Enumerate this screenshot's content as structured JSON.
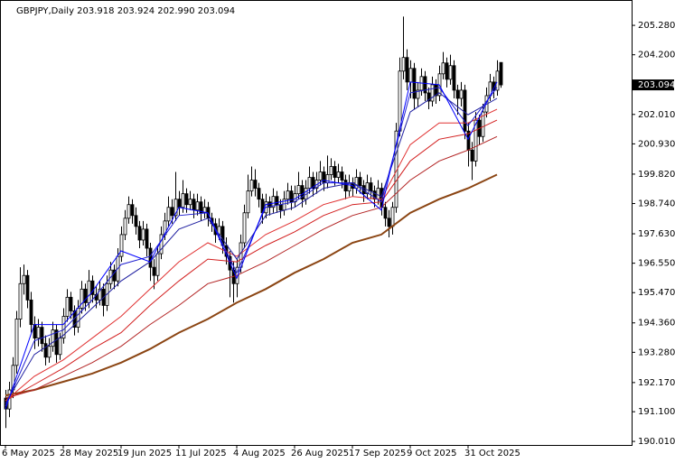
{
  "chart_data": {
    "type": "candlestick",
    "title": "GBPJPY,Daily  203.918 203.924 202.990 203.094",
    "xlim": [
      -1.5,
      173.25
    ],
    "ylim": [
      189.88,
      206.21
    ],
    "grid": false,
    "up_color": "#ffffff",
    "down_color": "#000000",
    "xticks": [
      {
        "value": 0,
        "label": "6 May 2025"
      },
      {
        "value": 16,
        "label": "28 May 2025"
      },
      {
        "value": 32,
        "label": "19 Jun 2025"
      },
      {
        "value": 48,
        "label": "11 Jul 2025"
      },
      {
        "value": 64,
        "label": "4 Aug 2025"
      },
      {
        "value": 80,
        "label": "26 Aug 2025"
      },
      {
        "value": 96,
        "label": "17 Sep 2025"
      },
      {
        "value": 112,
        "label": "9 Oct 2025"
      },
      {
        "value": 128,
        "label": "31 Oct 2025"
      }
    ],
    "yticks": [
      {
        "value": 190.01,
        "label": "190.010"
      },
      {
        "value": 191.1,
        "label": "191.100"
      },
      {
        "value": 192.17,
        "label": "192.170"
      },
      {
        "value": 193.28,
        "label": "193.280"
      },
      {
        "value": 194.36,
        "label": "194.360"
      },
      {
        "value": 195.47,
        "label": "195.470"
      },
      {
        "value": 196.55,
        "label": "196.550"
      },
      {
        "value": 197.63,
        "label": "197.630"
      },
      {
        "value": 198.74,
        "label": "198.740"
      },
      {
        "value": 199.82,
        "label": "199.820"
      },
      {
        "value": 200.93,
        "label": "200.930"
      },
      {
        "value": 202.01,
        "label": "202.010"
      },
      {
        "value": 204.2,
        "label": "204.200"
      },
      {
        "value": 205.28,
        "label": "205.280"
      }
    ],
    "last_price": {
      "value": 203.094,
      "label": "203.094"
    },
    "candles": [
      [
        191.6,
        191.9,
        190.5,
        191.2
      ],
      [
        191.2,
        192.2,
        190.9,
        191.9
      ],
      [
        191.9,
        193.1,
        191.6,
        192.8
      ],
      [
        192.8,
        194.8,
        192.5,
        194.5
      ],
      [
        194.5,
        196.4,
        194.2,
        195.8
      ],
      [
        195.8,
        196.5,
        195.4,
        196.1
      ],
      [
        196.1,
        196.3,
        194.9,
        195.2
      ],
      [
        195.2,
        195.5,
        194.0,
        194.3
      ],
      [
        194.3,
        194.6,
        193.4,
        193.8
      ],
      [
        193.8,
        194.5,
        193.5,
        194.2
      ],
      [
        194.2,
        194.4,
        193.3,
        193.6
      ],
      [
        193.6,
        193.9,
        192.8,
        193.1
      ],
      [
        193.1,
        193.8,
        192.9,
        193.5
      ],
      [
        193.5,
        194.4,
        193.3,
        194.1
      ],
      [
        194.1,
        194.3,
        192.9,
        193.2
      ],
      [
        193.2,
        194.0,
        193.0,
        193.8
      ],
      [
        193.8,
        194.9,
        193.6,
        194.6
      ],
      [
        194.6,
        195.6,
        194.4,
        195.3
      ],
      [
        195.3,
        195.5,
        194.5,
        194.8
      ],
      [
        194.8,
        195.0,
        193.9,
        194.2
      ],
      [
        194.2,
        195.2,
        194.0,
        194.9
      ],
      [
        194.9,
        195.9,
        194.7,
        195.6
      ],
      [
        195.6,
        195.8,
        194.8,
        195.1
      ],
      [
        195.1,
        196.3,
        194.9,
        195.9
      ],
      [
        195.9,
        196.1,
        195.1,
        195.4
      ],
      [
        195.4,
        195.7,
        194.9,
        195.2
      ],
      [
        195.2,
        195.9,
        195.0,
        195.6
      ],
      [
        195.6,
        195.8,
        194.6,
        195.0
      ],
      [
        195.0,
        196.1,
        194.8,
        195.8
      ],
      [
        195.8,
        196.6,
        195.6,
        196.3
      ],
      [
        196.3,
        196.5,
        195.6,
        195.9
      ],
      [
        195.9,
        197.1,
        195.7,
        196.8
      ],
      [
        196.8,
        197.9,
        196.6,
        197.6
      ],
      [
        197.6,
        198.5,
        197.4,
        198.2
      ],
      [
        198.2,
        199.0,
        198.0,
        198.7
      ],
      [
        198.7,
        198.9,
        198.0,
        198.3
      ],
      [
        198.3,
        198.6,
        197.6,
        197.9
      ],
      [
        197.9,
        198.1,
        197.1,
        197.4
      ],
      [
        197.4,
        198.1,
        197.2,
        197.8
      ],
      [
        197.8,
        198.0,
        196.8,
        197.1
      ],
      [
        197.1,
        197.3,
        195.9,
        196.4
      ],
      [
        196.4,
        196.7,
        195.6,
        196.1
      ],
      [
        196.1,
        197.2,
        195.9,
        196.9
      ],
      [
        196.9,
        197.9,
        196.7,
        197.6
      ],
      [
        197.6,
        198.4,
        197.4,
        198.1
      ],
      [
        198.1,
        199.0,
        197.9,
        198.6
      ],
      [
        198.6,
        198.9,
        198.0,
        198.3
      ],
      [
        198.3,
        199.9,
        198.1,
        198.9
      ],
      [
        198.9,
        199.2,
        198.3,
        198.6
      ],
      [
        198.6,
        199.6,
        198.4,
        199.1
      ],
      [
        199.1,
        199.3,
        198.4,
        198.7
      ],
      [
        198.7,
        199.2,
        198.5,
        198.9
      ],
      [
        198.9,
        199.1,
        198.2,
        198.5
      ],
      [
        198.5,
        199.1,
        198.3,
        198.8
      ],
      [
        198.8,
        199.0,
        198.1,
        198.4
      ],
      [
        198.4,
        198.9,
        198.2,
        198.6
      ],
      [
        198.6,
        198.8,
        197.9,
        198.2
      ],
      [
        198.2,
        198.4,
        197.7,
        198.0
      ],
      [
        198.0,
        198.2,
        197.3,
        197.6
      ],
      [
        197.6,
        198.2,
        197.4,
        197.9
      ],
      [
        197.9,
        198.1,
        196.9,
        197.2
      ],
      [
        197.2,
        197.5,
        196.5,
        196.8
      ],
      [
        196.8,
        197.0,
        195.3,
        196.3
      ],
      [
        196.3,
        196.6,
        195.1,
        195.8
      ],
      [
        195.8,
        196.7,
        195.3,
        196.4
      ],
      [
        196.4,
        197.6,
        196.2,
        197.3
      ],
      [
        197.3,
        198.7,
        197.1,
        198.4
      ],
      [
        198.4,
        199.8,
        198.2,
        199.2
      ],
      [
        199.2,
        200.1,
        199.0,
        199.6
      ],
      [
        199.6,
        200.0,
        199.0,
        199.3
      ],
      [
        199.3,
        199.5,
        198.6,
        198.9
      ],
      [
        198.9,
        199.1,
        198.0,
        198.4
      ],
      [
        198.4,
        199.1,
        198.2,
        198.8
      ],
      [
        198.8,
        199.0,
        198.3,
        198.6
      ],
      [
        198.6,
        199.3,
        198.4,
        199.0
      ],
      [
        199.0,
        199.2,
        198.4,
        198.7
      ],
      [
        198.7,
        198.9,
        198.2,
        198.5
      ],
      [
        198.5,
        199.2,
        198.3,
        198.9
      ],
      [
        198.9,
        199.5,
        198.7,
        199.2
      ],
      [
        199.2,
        199.4,
        198.5,
        198.8
      ],
      [
        198.8,
        199.4,
        198.6,
        199.1
      ],
      [
        199.1,
        199.9,
        198.9,
        199.4
      ],
      [
        199.4,
        199.6,
        198.6,
        198.9
      ],
      [
        198.9,
        199.6,
        198.7,
        199.3
      ],
      [
        199.3,
        200.1,
        199.1,
        199.7
      ],
      [
        199.7,
        199.9,
        199.0,
        199.3
      ],
      [
        199.3,
        199.9,
        199.1,
        199.6
      ],
      [
        199.6,
        200.3,
        199.4,
        199.9
      ],
      [
        199.9,
        200.1,
        199.2,
        199.5
      ],
      [
        199.5,
        200.5,
        199.3,
        199.8
      ],
      [
        199.8,
        200.4,
        199.6,
        200.1
      ],
      [
        200.1,
        200.3,
        199.4,
        199.7
      ],
      [
        199.7,
        200.2,
        199.5,
        199.9
      ],
      [
        199.9,
        200.1,
        199.3,
        199.6
      ],
      [
        199.6,
        199.8,
        198.9,
        199.2
      ],
      [
        199.2,
        199.8,
        199.0,
        199.5
      ],
      [
        199.5,
        199.7,
        199.0,
        199.3
      ],
      [
        199.3,
        200.0,
        199.1,
        199.7
      ],
      [
        199.7,
        199.9,
        199.1,
        199.4
      ],
      [
        199.4,
        199.6,
        198.8,
        199.1
      ],
      [
        199.1,
        199.8,
        198.9,
        199.5
      ],
      [
        199.5,
        199.7,
        198.9,
        199.2
      ],
      [
        199.2,
        199.4,
        198.6,
        198.9
      ],
      [
        198.9,
        199.6,
        198.7,
        199.3
      ],
      [
        199.3,
        199.5,
        198.3,
        198.6
      ],
      [
        198.6,
        198.8,
        197.9,
        198.2
      ],
      [
        198.2,
        198.5,
        197.5,
        197.9
      ],
      [
        197.9,
        198.8,
        197.6,
        198.6
      ],
      [
        198.6,
        201.7,
        198.4,
        201.4
      ],
      [
        201.4,
        204.1,
        201.2,
        203.6
      ],
      [
        203.6,
        205.6,
        203.3,
        204.1
      ],
      [
        204.1,
        204.4,
        202.9,
        203.2
      ],
      [
        203.2,
        204.0,
        202.6,
        203.7
      ],
      [
        203.7,
        203.9,
        202.2,
        202.6
      ],
      [
        202.6,
        203.2,
        202.3,
        202.9
      ],
      [
        202.9,
        203.7,
        202.7,
        203.4
      ],
      [
        203.4,
        203.6,
        202.5,
        202.8
      ],
      [
        202.8,
        203.0,
        202.2,
        202.5
      ],
      [
        202.5,
        203.4,
        202.3,
        203.1
      ],
      [
        203.1,
        203.3,
        202.4,
        202.7
      ],
      [
        202.7,
        203.8,
        202.5,
        203.5
      ],
      [
        203.5,
        204.3,
        203.3,
        203.9
      ],
      [
        203.9,
        204.1,
        203.0,
        203.3
      ],
      [
        203.3,
        204.2,
        203.1,
        203.8
      ],
      [
        203.8,
        204.0,
        202.6,
        202.9
      ],
      [
        202.9,
        203.1,
        202.0,
        202.6
      ],
      [
        202.6,
        203.2,
        202.3,
        202.9
      ],
      [
        202.9,
        203.1,
        201.1,
        201.4
      ],
      [
        201.4,
        201.7,
        200.1,
        200.7
      ],
      [
        200.7,
        201.0,
        199.6,
        200.3
      ],
      [
        200.3,
        202.1,
        200.1,
        201.8
      ],
      [
        201.8,
        202.0,
        200.9,
        201.2
      ],
      [
        201.2,
        202.4,
        201.0,
        202.1
      ],
      [
        202.1,
        203.0,
        201.9,
        202.7
      ],
      [
        202.7,
        203.5,
        202.5,
        203.2
      ],
      [
        203.2,
        203.4,
        202.6,
        202.9
      ],
      [
        202.9,
        204.0,
        202.7,
        203.6
      ],
      [
        203.918,
        203.924,
        202.99,
        203.094
      ]
    ],
    "line_x": [
      0,
      8,
      16,
      24,
      32,
      40,
      48,
      56,
      64,
      72,
      80,
      88,
      96,
      104,
      112,
      120,
      128,
      136
    ],
    "series": [
      {
        "color": "#8b4513",
        "values": [
          191.7,
          191.9,
          192.2,
          192.5,
          192.9,
          193.4,
          194.0,
          194.5,
          195.1,
          195.6,
          196.2,
          196.7,
          197.3,
          197.6,
          198.4,
          198.9,
          199.3,
          199.8
        ]
      },
      {
        "color": "#b22222",
        "values": [
          191.6,
          191.9,
          192.4,
          192.9,
          193.5,
          194.3,
          195.0,
          195.8,
          196.1,
          196.6,
          197.2,
          197.8,
          198.3,
          198.6,
          199.6,
          200.3,
          200.7,
          201.2
        ]
      },
      {
        "color": "#d21e1e",
        "values": [
          191.5,
          192.1,
          192.7,
          193.4,
          194.0,
          195.0,
          195.9,
          196.7,
          196.6,
          197.2,
          197.7,
          198.3,
          198.7,
          198.8,
          200.3,
          201.1,
          201.3,
          201.8
        ]
      },
      {
        "color": "#e03030",
        "values": [
          191.5,
          192.4,
          193.0,
          193.8,
          194.6,
          195.6,
          196.6,
          197.3,
          196.8,
          197.6,
          198.1,
          198.7,
          199.0,
          198.9,
          200.9,
          201.7,
          201.7,
          202.2
        ]
      },
      {
        "color": "#1e1ea0",
        "values": [
          191.4,
          193.2,
          193.9,
          194.9,
          195.9,
          196.6,
          197.8,
          198.2,
          196.7,
          198.3,
          198.6,
          199.3,
          199.5,
          199.0,
          202.1,
          202.8,
          202.0,
          202.6
        ]
      },
      {
        "color": "#2020d0",
        "values": [
          191.3,
          193.7,
          194.1,
          195.2,
          196.5,
          196.8,
          198.3,
          198.4,
          196.2,
          198.6,
          198.8,
          199.5,
          199.5,
          198.8,
          202.8,
          203.0,
          201.6,
          203.0
        ]
      },
      {
        "color": "#0000ff",
        "values": [
          191.2,
          194.3,
          194.3,
          195.5,
          197.0,
          196.6,
          198.6,
          198.4,
          196.0,
          198.7,
          198.9,
          199.6,
          199.4,
          198.5,
          203.2,
          203.1,
          201.1,
          203.2
        ]
      }
    ]
  }
}
